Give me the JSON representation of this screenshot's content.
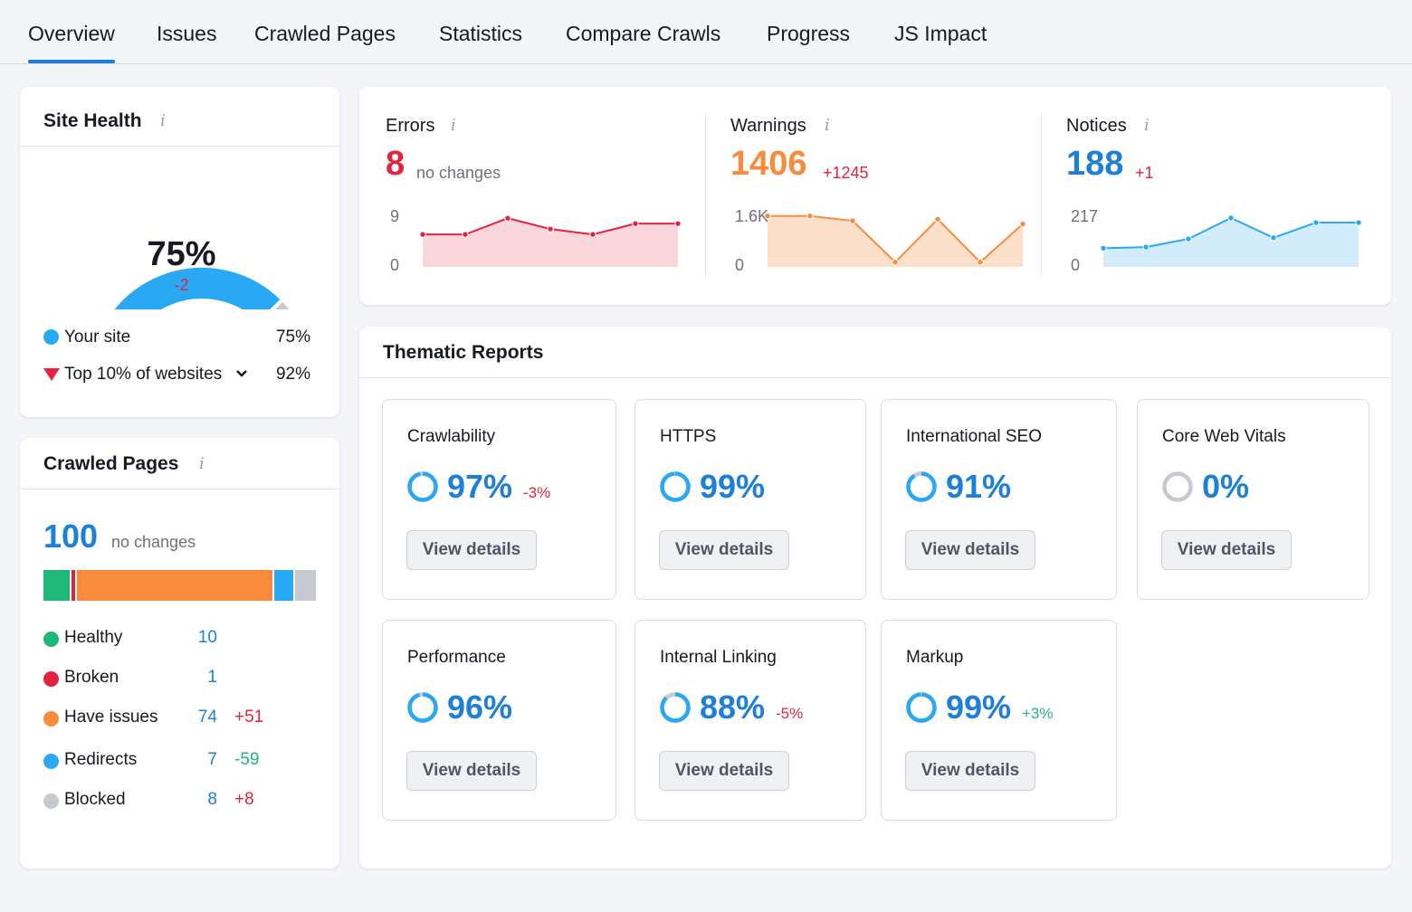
{
  "tabs": [
    "Overview",
    "Issues",
    "Crawled Pages",
    "Statistics",
    "Compare Crawls",
    "Progress",
    "JS Impact"
  ],
  "info_glyph": "i",
  "site_health": {
    "title": "Site Health",
    "value": "75%",
    "delta": "-2",
    "value_fraction": 0.75,
    "top10_fraction": 0.92,
    "legend": [
      {
        "label": "Your site",
        "value": "75%"
      },
      {
        "label": "Top 10% of websites",
        "value": "92%"
      }
    ]
  },
  "metrics": [
    {
      "label": "Errors",
      "value": "8",
      "delta": "no changes",
      "y_max": "9",
      "y_min": "0",
      "series": [
        6,
        6,
        9,
        7,
        6,
        8,
        8
      ],
      "series_max": 9.7
    },
    {
      "label": "Warnings",
      "value": "1406",
      "delta": "+1245",
      "y_max": "1.6K",
      "y_min": "0",
      "series": [
        1600,
        1600,
        1450,
        150,
        1500,
        150,
        1350
      ],
      "series_max": 1650
    },
    {
      "label": "Notices",
      "value": "188",
      "delta": "+1",
      "y_max": "217",
      "y_min": "0",
      "series": [
        80,
        85,
        120,
        210,
        125,
        190,
        190
      ],
      "series_max": 225
    }
  ],
  "crawled_pages": {
    "title": "Crawled Pages",
    "value": "100",
    "delta": "no changes",
    "bar": [
      10,
      1,
      74,
      7,
      8
    ],
    "items": [
      {
        "label": "Healthy",
        "count": "10",
        "delta": ""
      },
      {
        "label": "Broken",
        "count": "1",
        "delta": ""
      },
      {
        "label": "Have issues",
        "count": "74",
        "delta": "+51"
      },
      {
        "label": "Redirects",
        "count": "7",
        "delta": "-59"
      },
      {
        "label": "Blocked",
        "count": "8",
        "delta": "+8"
      }
    ]
  },
  "thematic": {
    "title": "Thematic Reports",
    "button_label": "View details",
    "reports": [
      {
        "name": "Crawlability",
        "value": "97%",
        "fraction": 0.97,
        "delta": "-3%"
      },
      {
        "name": "HTTPS",
        "value": "99%",
        "fraction": 0.99,
        "delta": ""
      },
      {
        "name": "International SEO",
        "value": "91%",
        "fraction": 0.91,
        "delta": ""
      },
      {
        "name": "Core Web Vitals",
        "value": "0%",
        "fraction": 0.0,
        "delta": ""
      },
      {
        "name": "Performance",
        "value": "96%",
        "fraction": 0.96,
        "delta": ""
      },
      {
        "name": "Internal Linking",
        "value": "88%",
        "fraction": 0.88,
        "delta": "-5%"
      },
      {
        "name": "Markup",
        "value": "99%",
        "fraction": 0.99,
        "delta": "+3%"
      }
    ]
  },
  "colors": {
    "accent": "#1d7fd7",
    "sky": "#29a9f3",
    "gray": "#c6c9cf",
    "red": "#e2223f",
    "orange": "#fa8b3c",
    "green": "#1fb878",
    "errors_fill": "#fbd6dc",
    "warnings_fill": "#fde0ca",
    "notices_fill": "#d3ecfb"
  }
}
